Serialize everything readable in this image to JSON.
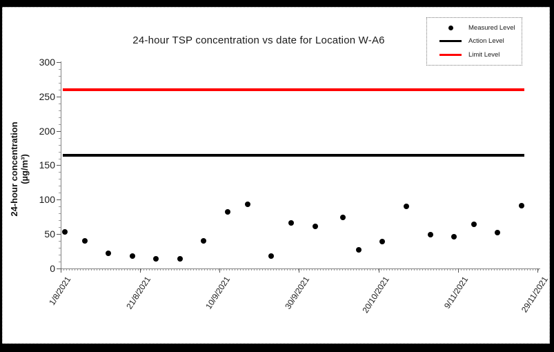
{
  "frame": {
    "background": "#000000",
    "panel_background": "#ffffff",
    "panel_border": "#999999"
  },
  "chart_data": {
    "type": "scatter",
    "title": "24-hour TSP concentration vs date for Location W-A6",
    "ylabel_line1": "24-hour concentration",
    "ylabel_line2": "(µg/m³)",
    "ylim": [
      0,
      300
    ],
    "y_ticks": [
      0,
      50,
      100,
      150,
      200,
      250,
      300
    ],
    "y_minor_step": 10,
    "x_tick_labels": [
      "1/8/2021",
      "21/8/2021",
      "10/9/2021",
      "30/9/2021",
      "20/10/2021",
      "9/11/2021",
      "29/11/2021"
    ],
    "x_major_interval_days": 20,
    "x_range_days": [
      0,
      120
    ],
    "grid": false,
    "legend_position": "top-right",
    "colors": {
      "measured": "#000000",
      "action": "#000000",
      "limit": "#ff0000",
      "axis": "#808080",
      "tick": "#555555"
    },
    "series": [
      {
        "name": "Measured Level",
        "marker": "dot",
        "color": "#000000",
        "points": [
          {
            "date": "2/8/2021",
            "day": 1,
            "value": 53
          },
          {
            "date": "7/8/2021",
            "day": 6,
            "value": 40
          },
          {
            "date": "13/8/2021",
            "day": 12,
            "value": 22
          },
          {
            "date": "19/8/2021",
            "day": 18,
            "value": 18
          },
          {
            "date": "25/8/2021",
            "day": 24,
            "value": 14
          },
          {
            "date": "31/8/2021",
            "day": 30,
            "value": 14
          },
          {
            "date": "6/9/2021",
            "day": 36,
            "value": 40
          },
          {
            "date": "12/9/2021",
            "day": 42,
            "value": 82
          },
          {
            "date": "17/9/2021",
            "day": 47,
            "value": 93
          },
          {
            "date": "23/9/2021",
            "day": 53,
            "value": 18
          },
          {
            "date": "28/9/2021",
            "day": 58,
            "value": 66
          },
          {
            "date": "4/10/2021",
            "day": 64,
            "value": 61
          },
          {
            "date": "11/10/2021",
            "day": 71,
            "value": 74
          },
          {
            "date": "15/10/2021",
            "day": 75,
            "value": 27
          },
          {
            "date": "21/10/2021",
            "day": 81,
            "value": 39
          },
          {
            "date": "27/10/2021",
            "day": 87,
            "value": 90
          },
          {
            "date": "2/11/2021",
            "day": 93,
            "value": 49
          },
          {
            "date": "8/11/2021",
            "day": 99,
            "value": 46
          },
          {
            "date": "13/11/2021",
            "day": 104,
            "value": 64
          },
          {
            "date": "19/11/2021",
            "day": 110,
            "value": 52
          },
          {
            "date": "25/11/2021",
            "day": 116,
            "value": 91
          }
        ]
      },
      {
        "name": "Action Level",
        "marker": "line",
        "color": "#000000",
        "level": 165
      },
      {
        "name": "Limit Level",
        "marker": "line",
        "color": "#ff0000",
        "level": 260
      }
    ]
  }
}
